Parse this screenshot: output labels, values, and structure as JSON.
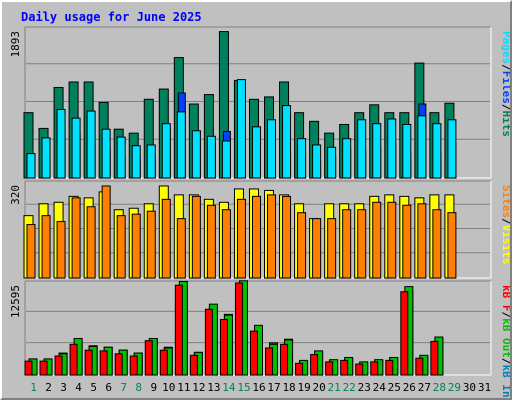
{
  "title": "Daily usage for June 2025",
  "colors": {
    "background": "#c0c0c0",
    "title": "#0000ff",
    "hits": "#00805c",
    "files": "#0040ff",
    "pages": "#00e0ff",
    "visits": "#ffff00",
    "sites": "#ff8000",
    "kb_in": "#0080c0",
    "kb_out": "#00c000",
    "kb_f": "#ff0000",
    "weekend_day": "#00805c",
    "weekday": "#000000"
  },
  "chart_data": [
    {
      "type": "bar",
      "panel": "top",
      "ymax_label": "1893",
      "ylim": [
        0,
        1893
      ],
      "grid": true,
      "categories": [
        "1",
        "2",
        "3",
        "4",
        "5",
        "6",
        "7",
        "8",
        "9",
        "10",
        "11",
        "12",
        "13",
        "14",
        "15",
        "16",
        "17",
        "18",
        "19",
        "20",
        "21",
        "22",
        "23",
        "24",
        "25",
        "26",
        "27",
        "28",
        "29",
        "30",
        "31"
      ],
      "legend": [
        {
          "key": "pages",
          "label": "Pages"
        },
        {
          "key": "sep1",
          "label": "/"
        },
        {
          "key": "files",
          "label": "Files"
        },
        {
          "key": "sep2",
          "label": "/"
        },
        {
          "key": "hits",
          "label": "Hits"
        }
      ],
      "series": [
        {
          "name": "Hits",
          "values": [
            830,
            630,
            1150,
            1220,
            1220,
            960,
            620,
            570,
            1000,
            1130,
            1530,
            940,
            1060,
            1860,
            1240,
            1000,
            1030,
            1220,
            830,
            720,
            570,
            680,
            830,
            930,
            830,
            830,
            1460,
            830,
            950,
            null,
            null
          ]
        },
        {
          "name": "Files",
          "values": [
            310,
            240,
            560,
            560,
            440,
            370,
            280,
            240,
            250,
            630,
            1080,
            590,
            440,
            590,
            600,
            560,
            340,
            340,
            340,
            200,
            290,
            390,
            360,
            400,
            450,
            310,
            940,
            310,
            440,
            null,
            null
          ]
        },
        {
          "name": "Pages",
          "values": [
            310,
            510,
            870,
            760,
            850,
            620,
            520,
            410,
            420,
            690,
            840,
            600,
            530,
            470,
            1250,
            650,
            740,
            920,
            500,
            420,
            390,
            500,
            740,
            690,
            750,
            680,
            790,
            690,
            740,
            null,
            null
          ]
        }
      ]
    },
    {
      "type": "bar",
      "panel": "middle",
      "ymax_label": "320",
      "ylim": [
        0,
        320
      ],
      "grid": true,
      "categories": [
        "1",
        "2",
        "3",
        "4",
        "5",
        "6",
        "7",
        "8",
        "9",
        "10",
        "11",
        "12",
        "13",
        "14",
        "15",
        "16",
        "17",
        "18",
        "19",
        "20",
        "21",
        "22",
        "23",
        "24",
        "25",
        "26",
        "27",
        "28",
        "29",
        "30",
        "31"
      ],
      "legend": [
        {
          "key": "sites",
          "label": "Sites"
        },
        {
          "key": "sep1",
          "label": "/"
        },
        {
          "key": "visits",
          "label": "Visits"
        }
      ],
      "series": [
        {
          "name": "Visits",
          "values": [
            210,
            250,
            255,
            275,
            270,
            290,
            230,
            235,
            250,
            310,
            280,
            280,
            265,
            255,
            300,
            300,
            295,
            280,
            250,
            200,
            250,
            250,
            250,
            275,
            280,
            275,
            270,
            280,
            280,
            null,
            null
          ]
        },
        {
          "name": "Sites",
          "values": [
            180,
            210,
            190,
            270,
            240,
            310,
            210,
            215,
            225,
            265,
            200,
            275,
            245,
            230,
            265,
            275,
            280,
            275,
            220,
            200,
            200,
            230,
            230,
            255,
            255,
            245,
            250,
            230,
            220,
            null,
            null
          ]
        }
      ]
    },
    {
      "type": "bar",
      "panel": "bottom",
      "ymax_label": "12595",
      "ylim": [
        0,
        12595
      ],
      "grid": true,
      "categories": [
        "1",
        "2",
        "3",
        "4",
        "5",
        "6",
        "7",
        "8",
        "9",
        "10",
        "11",
        "12",
        "13",
        "14",
        "15",
        "16",
        "17",
        "18",
        "19",
        "20",
        "21",
        "22",
        "23",
        "24",
        "25",
        "26",
        "27",
        "28",
        "29",
        "30",
        "31"
      ],
      "legend": [
        {
          "key": "kb_f",
          "label": "kB F"
        },
        {
          "key": "sep1",
          "label": "/"
        },
        {
          "key": "kb_out",
          "label": "kB Out"
        },
        {
          "key": "sep2",
          "label": "/"
        },
        {
          "key": "kb_in",
          "label": "kB In"
        }
      ],
      "series": [
        {
          "name": "kB In",
          "values": [
            2200,
            2200,
            3000,
            4600,
            4000,
            3800,
            3400,
            3000,
            4800,
            3800,
            12300,
            3100,
            9100,
            8300,
            12600,
            5400,
            4400,
            4900,
            1900,
            3100,
            2000,
            2200,
            1600,
            2000,
            2300,
            11400,
            2500,
            4900,
            null,
            null,
            null
          ]
        },
        {
          "name": "kB Out",
          "values": [
            2200,
            2200,
            2900,
            5000,
            3900,
            3800,
            3400,
            3000,
            5000,
            3700,
            12800,
            3100,
            9700,
            8200,
            12900,
            6800,
            4200,
            4800,
            2000,
            3300,
            2100,
            2400,
            1800,
            2100,
            2400,
            12100,
            2700,
            5200,
            null,
            null,
            null
          ]
        },
        {
          "name": "kB F",
          "values": [
            1900,
            1900,
            2600,
            4200,
            3400,
            3300,
            2900,
            2600,
            4700,
            3400,
            12300,
            2700,
            9000,
            7600,
            12600,
            6000,
            3700,
            4200,
            1600,
            2800,
            1800,
            2000,
            1500,
            1800,
            2000,
            11400,
            2300,
            4600,
            null,
            null,
            null
          ]
        }
      ]
    }
  ]
}
